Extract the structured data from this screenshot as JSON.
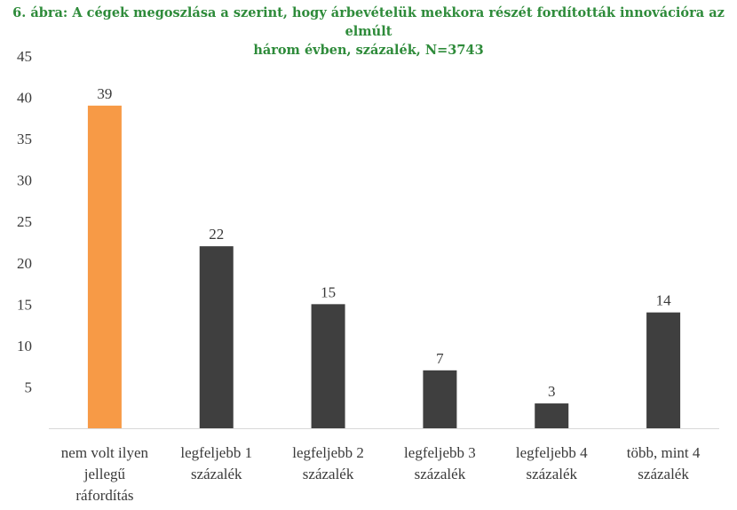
{
  "chart_data": {
    "type": "bar",
    "title_lines": [
      "6. ábra: A cégek megoszlása a szerint, hogy árbevételük mekkora részét fordították innovációra az elmúlt",
      "három évben, százalék, N=3743"
    ],
    "categories": [
      [
        "nem volt ilyen",
        "jellegű",
        "ráfordítás"
      ],
      [
        "legfeljebb 1",
        "százalék"
      ],
      [
        "legfeljebb 2",
        "százalék"
      ],
      [
        "legfeljebb 3",
        "százalék"
      ],
      [
        "legfeljebb 4",
        "százalék"
      ],
      [
        "több, mint 4",
        "százalék"
      ]
    ],
    "values": [
      39,
      22,
      15,
      7,
      3,
      14
    ],
    "bar_colors": [
      "#f79a46",
      "#3f3f3f",
      "#3f3f3f",
      "#3f3f3f",
      "#3f3f3f",
      "#3f3f3f"
    ],
    "yticks": [
      5,
      10,
      15,
      20,
      25,
      30,
      35,
      40,
      45
    ],
    "ylim": [
      0,
      45
    ],
    "xlabel": "",
    "ylabel": "",
    "grid": false,
    "axis_color": "#d9d9d9"
  }
}
